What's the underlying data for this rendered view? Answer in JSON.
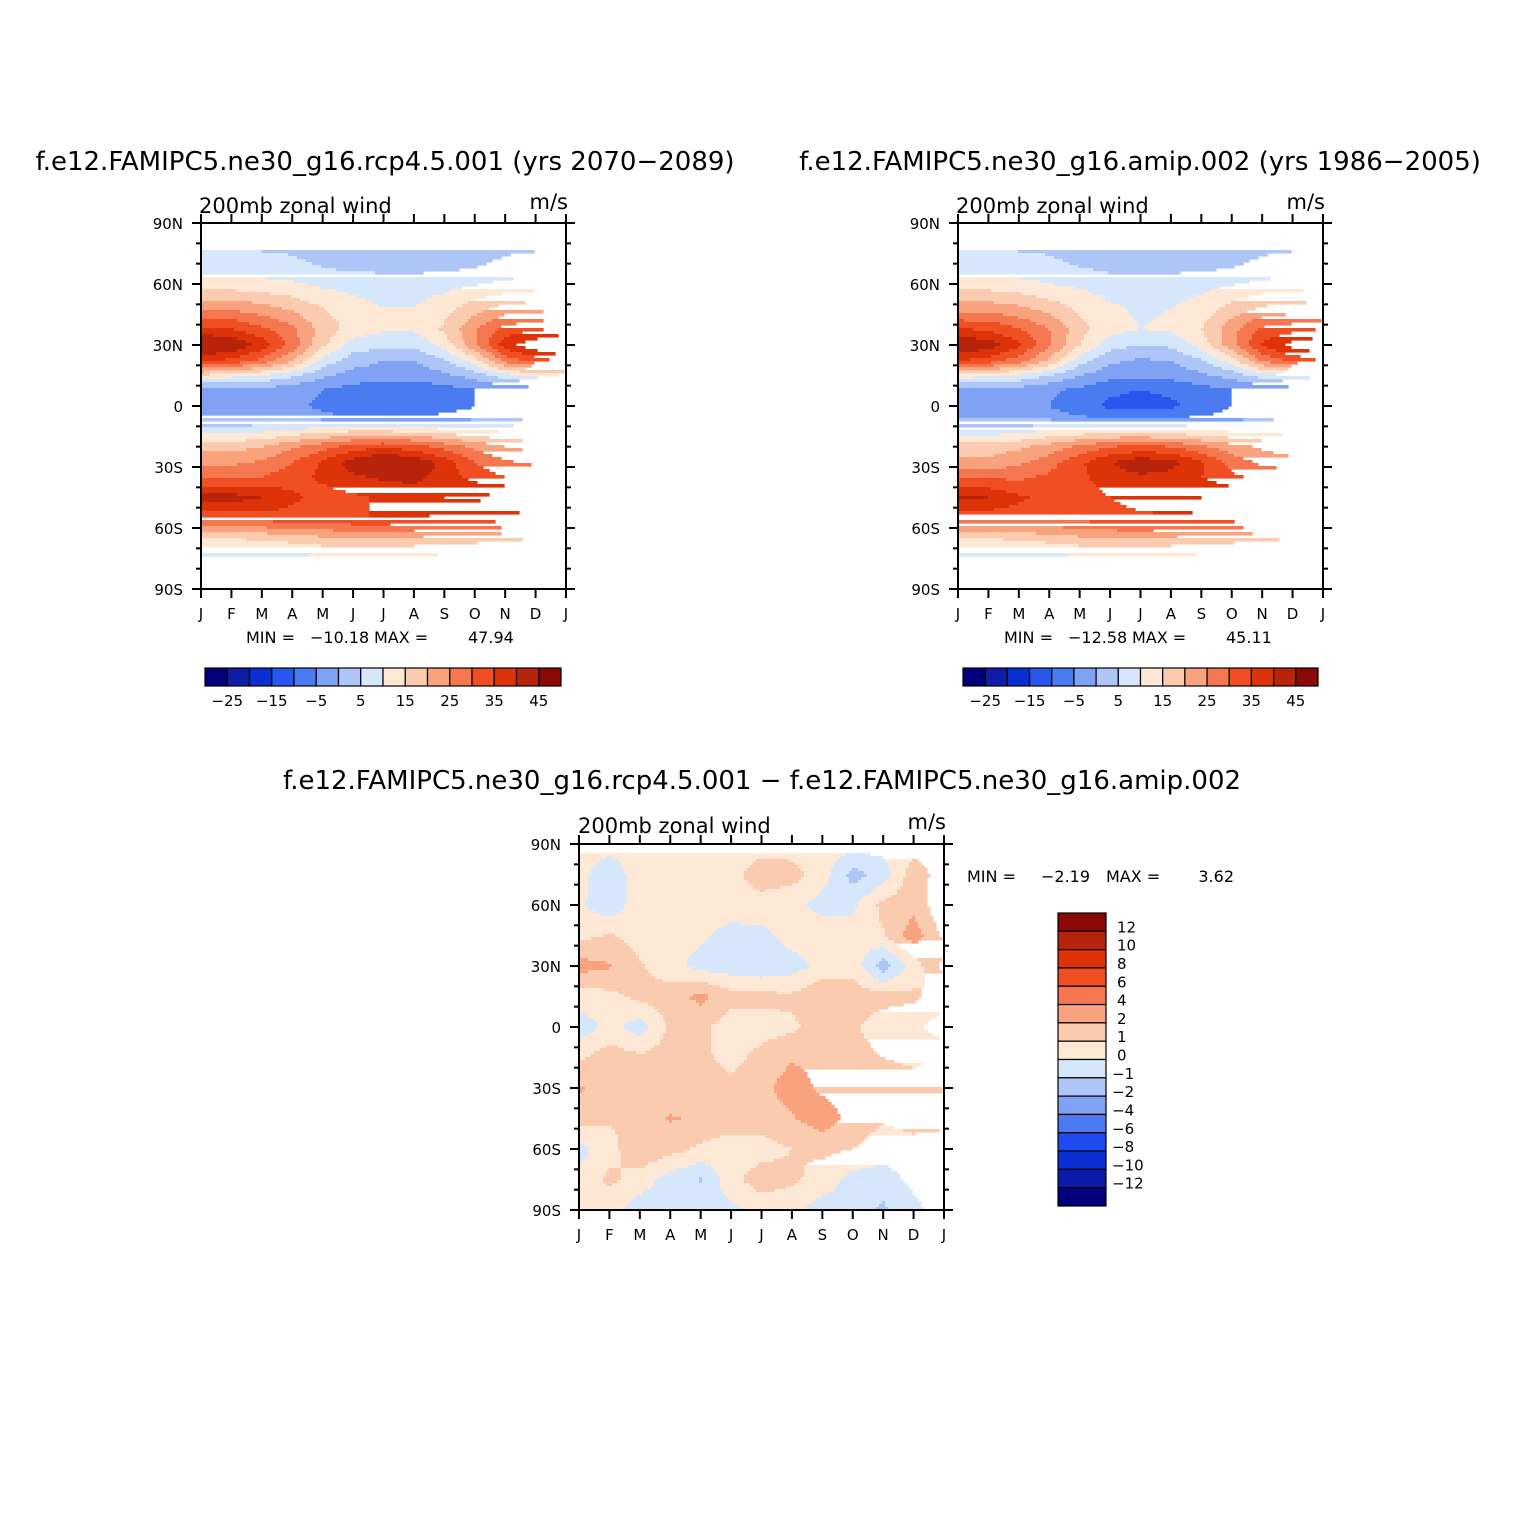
{
  "chart_data": [
    {
      "type": "heatmap",
      "title": "f.e12.FAMIPC5.ne30_g16.rcp4.5.001 (yrs 2070-2089)",
      "subtitle_left": "200mb zonal wind",
      "subtitle_right": "m/s",
      "x_tick_labels": [
        "J",
        "F",
        "M",
        "A",
        "M",
        "J",
        "J",
        "A",
        "S",
        "O",
        "N",
        "D",
        "J"
      ],
      "y_tick_labels": [
        "90N",
        "60N",
        "30N",
        "0",
        "30S",
        "60S",
        "90S"
      ],
      "y_ticks": [
        90,
        60,
        30,
        0,
        -30,
        -60,
        -90
      ],
      "ylim": [
        -90,
        90
      ],
      "min_label": "MIN =",
      "min_value": "-10.18",
      "max_label": "MAX =",
      "max_value": "47.94",
      "colorbar": {
        "orientation": "horizontal",
        "levels": [
          -30,
          -25,
          -20,
          -15,
          -10,
          -5,
          0,
          5,
          10,
          15,
          20,
          25,
          30,
          35,
          40,
          45
        ],
        "labels": [
          "-25",
          "-15",
          "-5",
          "5",
          "15",
          "25",
          "35",
          "45"
        ],
        "colors": [
          "#00007f",
          "#0e1ca6",
          "#0a2fd4",
          "#2a55ee",
          "#4a7bf0",
          "#7fa2f4",
          "#aec6f7",
          "#d6e6fb",
          "#fde8d6",
          "#fbcbb0",
          "#f8a27e",
          "#f5774f",
          "#f04e23",
          "#de3209",
          "#b8240b",
          "#8a0b06"
        ]
      },
      "field": {
        "lats": [
          -90,
          -75,
          -65,
          -55,
          -45,
          -35,
          -28,
          -20,
          -12,
          -5,
          0,
          8,
          15,
          22,
          30,
          38,
          48,
          58,
          68,
          80,
          90
        ],
        "months": [
          "J",
          "F",
          "M",
          "A",
          "M",
          "J",
          "J",
          "A",
          "S",
          "O",
          "N",
          "D",
          "J"
        ],
        "rows": [
          [
            6,
            6,
            6,
            6,
            6,
            6,
            6,
            6,
            6,
            6,
            6,
            6,
            6
          ],
          [
            8,
            8,
            8,
            8,
            8,
            8,
            8,
            8,
            8,
            8,
            8,
            8,
            8
          ],
          [
            15,
            15,
            16,
            17,
            19,
            20,
            20,
            19,
            18,
            17,
            16,
            15,
            15
          ],
          [
            32,
            32,
            33,
            33,
            34,
            35,
            35,
            35,
            34,
            33,
            33,
            32,
            32
          ],
          [
            42,
            42,
            40,
            36,
            33,
            34,
            36,
            38,
            40,
            41,
            42,
            42,
            42
          ],
          [
            30,
            30,
            30,
            33,
            36,
            39,
            41,
            41,
            38,
            33,
            30,
            30,
            30
          ],
          [
            24,
            24,
            26,
            30,
            36,
            43,
            47,
            45,
            38,
            30,
            26,
            24,
            24
          ],
          [
            18,
            18,
            20,
            24,
            28,
            32,
            34,
            32,
            28,
            24,
            20,
            18,
            18
          ],
          [
            8,
            8,
            9,
            11,
            13,
            14,
            14,
            13,
            12,
            10,
            9,
            8,
            8
          ],
          [
            -2,
            -2,
            -2,
            -3,
            -4,
            -5,
            -5,
            -5,
            -4,
            -3,
            -2,
            -3,
            -3
          ],
          [
            -3,
            -3,
            -3,
            -4,
            -6,
            -8,
            -9,
            -9,
            -7,
            -5,
            -4,
            -4,
            -3
          ],
          [
            -2,
            -2,
            -2,
            -3,
            -5,
            -7,
            -8,
            -8,
            -7,
            -5,
            -4,
            -3,
            -2
          ],
          [
            14,
            12,
            10,
            6,
            1,
            -2,
            -3,
            -3,
            -1,
            2,
            8,
            12,
            14
          ],
          [
            36,
            33,
            28,
            20,
            8,
            2,
            0,
            0,
            4,
            12,
            26,
            32,
            36
          ],
          [
            47,
            45,
            38,
            28,
            16,
            8,
            6,
            6,
            12,
            24,
            38,
            44,
            47
          ],
          [
            36,
            35,
            31,
            26,
            18,
            13,
            11,
            11,
            16,
            24,
            32,
            34,
            36
          ],
          [
            24,
            24,
            22,
            19,
            15,
            12,
            10,
            10,
            13,
            18,
            22,
            23,
            24
          ],
          [
            14,
            14,
            13,
            12,
            10,
            9,
            8,
            8,
            9,
            11,
            13,
            14,
            14
          ],
          [
            7,
            7,
            7,
            6,
            5,
            4,
            4,
            4,
            4,
            5,
            6,
            7,
            7
          ],
          [
            4,
            4,
            4,
            4,
            3,
            3,
            3,
            3,
            3,
            3,
            4,
            4,
            4
          ],
          [
            3,
            3,
            3,
            3,
            3,
            3,
            3,
            3,
            3,
            3,
            3,
            3,
            3
          ]
        ]
      }
    },
    {
      "type": "heatmap",
      "title": "f.e12.FAMIPC5.ne30_g16.amip.002 (yrs 1986-2005)",
      "subtitle_left": "200mb zonal wind",
      "subtitle_right": "m/s",
      "x_tick_labels": [
        "J",
        "F",
        "M",
        "A",
        "M",
        "J",
        "J",
        "A",
        "S",
        "O",
        "N",
        "D",
        "J"
      ],
      "y_tick_labels": [
        "90N",
        "60N",
        "30N",
        "0",
        "30S",
        "60S",
        "90S"
      ],
      "y_ticks": [
        90,
        60,
        30,
        0,
        -30,
        -60,
        -90
      ],
      "ylim": [
        -90,
        90
      ],
      "min_label": "MIN =",
      "min_value": "-12.58",
      "max_label": "MAX =",
      "max_value": "45.11",
      "colorbar": {
        "orientation": "horizontal",
        "levels": [
          -30,
          -25,
          -20,
          -15,
          -10,
          -5,
          0,
          5,
          10,
          15,
          20,
          25,
          30,
          35,
          40,
          45
        ],
        "labels": [
          "-25",
          "-15",
          "-5",
          "5",
          "15",
          "25",
          "35",
          "45"
        ],
        "colors": [
          "#00007f",
          "#0e1ca6",
          "#0a2fd4",
          "#2a55ee",
          "#4a7bf0",
          "#7fa2f4",
          "#aec6f7",
          "#d6e6fb",
          "#fde8d6",
          "#fbcbb0",
          "#f8a27e",
          "#f5774f",
          "#f04e23",
          "#de3209",
          "#b8240b",
          "#8a0b06"
        ]
      },
      "field": {
        "lats": [
          -90,
          -75,
          -65,
          -55,
          -45,
          -35,
          -28,
          -20,
          -12,
          -5,
          0,
          8,
          15,
          22,
          30,
          38,
          48,
          58,
          68,
          80,
          90
        ],
        "months": [
          "J",
          "F",
          "M",
          "A",
          "M",
          "J",
          "J",
          "A",
          "S",
          "O",
          "N",
          "D",
          "J"
        ],
        "rows": [
          [
            6,
            6,
            6,
            6,
            6,
            6,
            6,
            6,
            6,
            6,
            6,
            6,
            6
          ],
          [
            8,
            8,
            8,
            8,
            8,
            8,
            8,
            8,
            8,
            8,
            8,
            8,
            8
          ],
          [
            15,
            15,
            16,
            17,
            19,
            20,
            20,
            19,
            18,
            17,
            16,
            15,
            15
          ],
          [
            32,
            32,
            32,
            31,
            32,
            33,
            34,
            34,
            33,
            33,
            32,
            32,
            32
          ],
          [
            40,
            40,
            36,
            33,
            33,
            35,
            37,
            39,
            40,
            40,
            41,
            41,
            40
          ],
          [
            29,
            29,
            29,
            31,
            34,
            37,
            39,
            38,
            35,
            31,
            29,
            29,
            29
          ],
          [
            22,
            22,
            24,
            28,
            34,
            40,
            44,
            42,
            36,
            28,
            24,
            22,
            22
          ],
          [
            17,
            17,
            19,
            22,
            26,
            30,
            31,
            30,
            26,
            22,
            19,
            17,
            17
          ],
          [
            7,
            7,
            8,
            10,
            11,
            12,
            12,
            11,
            10,
            9,
            8,
            7,
            7
          ],
          [
            -2,
            -2,
            -2,
            -3,
            -5,
            -7,
            -7,
            -6,
            -5,
            -3,
            -2,
            -3,
            -3
          ],
          [
            -3,
            -3,
            -3,
            -5,
            -8,
            -11,
            -12,
            -11,
            -8,
            -5,
            -4,
            -4,
            -3
          ],
          [
            -2,
            -2,
            -2,
            -4,
            -6,
            -9,
            -10,
            -9,
            -7,
            -5,
            -4,
            -3,
            -2
          ],
          [
            13,
            11,
            9,
            5,
            0,
            -3,
            -4,
            -3,
            -1,
            2,
            7,
            11,
            13
          ],
          [
            35,
            32,
            27,
            19,
            7,
            1,
            -1,
            0,
            4,
            12,
            25,
            31,
            35
          ],
          [
            45,
            43,
            36,
            26,
            15,
            7,
            5,
            6,
            12,
            23,
            36,
            42,
            45
          ],
          [
            35,
            34,
            30,
            25,
            17,
            12,
            10,
            11,
            15,
            23,
            31,
            33,
            35
          ],
          [
            23,
            23,
            21,
            18,
            14,
            11,
            9,
            10,
            12,
            17,
            21,
            22,
            23
          ],
          [
            14,
            14,
            13,
            11,
            10,
            8,
            7,
            8,
            9,
            11,
            13,
            14,
            14
          ],
          [
            7,
            7,
            7,
            6,
            5,
            4,
            4,
            4,
            4,
            5,
            6,
            7,
            7
          ],
          [
            4,
            4,
            4,
            4,
            3,
            3,
            3,
            3,
            3,
            3,
            4,
            4,
            4
          ],
          [
            3,
            3,
            3,
            3,
            3,
            3,
            3,
            3,
            3,
            3,
            3,
            3,
            3
          ]
        ]
      }
    },
    {
      "type": "heatmap",
      "title": "f.e12.FAMIPC5.ne30_g16.rcp4.5.001 - f.e12.FAMIPC5.ne30_g16.amip.002",
      "subtitle_left": "200mb zonal wind",
      "subtitle_right": "m/s",
      "x_tick_labels": [
        "J",
        "F",
        "M",
        "A",
        "M",
        "J",
        "J",
        "A",
        "S",
        "O",
        "N",
        "D",
        "J"
      ],
      "y_tick_labels": [
        "90N",
        "60N",
        "30N",
        "0",
        "30S",
        "60S",
        "90S"
      ],
      "y_ticks": [
        90,
        60,
        30,
        0,
        -30,
        -60,
        -90
      ],
      "ylim": [
        -90,
        90
      ],
      "min_label": "MIN =",
      "min_value": "-2.19",
      "max_label": "MAX =",
      "max_value": "3.62",
      "colorbar": {
        "orientation": "vertical",
        "levels": [
          -14,
          -12,
          -10,
          -8,
          -6,
          -4,
          -2,
          -1,
          0,
          1,
          2,
          4,
          6,
          8,
          10,
          12,
          14
        ],
        "labels": [
          "12",
          "10",
          "8",
          "6",
          "4",
          "2",
          "1",
          "0",
          "-1",
          "-2",
          "-4",
          "-6",
          "-8",
          "-10",
          "-12"
        ],
        "colors": [
          "#00007f",
          "#0a1caa",
          "#0b2fd4",
          "#1e4bf0",
          "#4a7bf0",
          "#7fa2f4",
          "#aec6f7",
          "#d6e6fb",
          "#fde8d6",
          "#fbcbb0",
          "#f8a27e",
          "#f5774f",
          "#f04e23",
          "#de3209",
          "#b8240b",
          "#8a0b06"
        ]
      },
      "field": {
        "lats": [
          -90,
          -75,
          -60,
          -45,
          -30,
          -15,
          0,
          15,
          30,
          45,
          60,
          75,
          90
        ],
        "months": [
          "J",
          "F",
          "M",
          "A",
          "M",
          "J",
          "J",
          "A",
          "S",
          "O",
          "N",
          "D",
          "J"
        ],
        "rows": [
          [
            0.3,
            0.5,
            -0.6,
            -0.8,
            -0.4,
            -0.3,
            0.4,
            0.2,
            -0.5,
            -0.4,
            -1.2,
            -0.3,
            0.5
          ],
          [
            0.4,
            1.2,
            0.6,
            -0.5,
            -1.1,
            0.7,
            1.5,
            1.2,
            0.6,
            -0.4,
            -0.5,
            0.3,
            0.6
          ],
          [
            -0.4,
            0.6,
            1.8,
            1.4,
            0.8,
            0.4,
            0.6,
            1.0,
            1.2,
            1.0,
            0.5,
            0.7,
            0.2
          ],
          [
            1.5,
            1.1,
            1.4,
            2.1,
            1.8,
            1.6,
            1.4,
            1.9,
            2.6,
            1.6,
            1.1,
            1.3,
            1.5
          ],
          [
            2.1,
            1.6,
            1.9,
            1.3,
            1.5,
            1.2,
            1.7,
            2.5,
            1.8,
            1.5,
            1.3,
            1.2,
            2.1
          ],
          [
            0.8,
            1.6,
            1.2,
            1.5,
            1.2,
            0.7,
            1.3,
            1.9,
            1.7,
            1.4,
            1.0,
            0.9,
            0.8
          ],
          [
            -0.6,
            0.3,
            -0.5,
            1.2,
            1.3,
            0.4,
            0.6,
            0.8,
            1.5,
            1.2,
            0.4,
            0.2,
            -0.6
          ],
          [
            0.5,
            0.7,
            1.3,
            1.5,
            2.3,
            1.4,
            1.3,
            1.2,
            1.9,
            1.6,
            1.4,
            1.2,
            0.5
          ],
          [
            2.4,
            2.1,
            1.1,
            0.4,
            -0.4,
            -0.6,
            -0.8,
            -0.5,
            0.3,
            0.6,
            -1.6,
            0.4,
            2.4
          ],
          [
            0.7,
            1.1,
            0.6,
            0.4,
            0.2,
            -0.4,
            -0.3,
            0.5,
            0.8,
            0.4,
            0.9,
            2.6,
            0.7
          ],
          [
            0.2,
            -0.7,
            0.6,
            0.5,
            0.3,
            0.6,
            0.5,
            0.3,
            -0.4,
            -0.2,
            1.3,
            1.6,
            0.2
          ],
          [
            0.4,
            -0.8,
            0.7,
            0.8,
            0.5,
            0.6,
            1.6,
            1.4,
            0.5,
            -1.4,
            -0.6,
            1.6,
            0.4
          ],
          [
            0.5,
            0.5,
            0.5,
            0.5,
            0.5,
            0.5,
            0.5,
            0.5,
            0.5,
            0.5,
            0.5,
            0.5,
            0.5
          ]
        ]
      }
    }
  ]
}
